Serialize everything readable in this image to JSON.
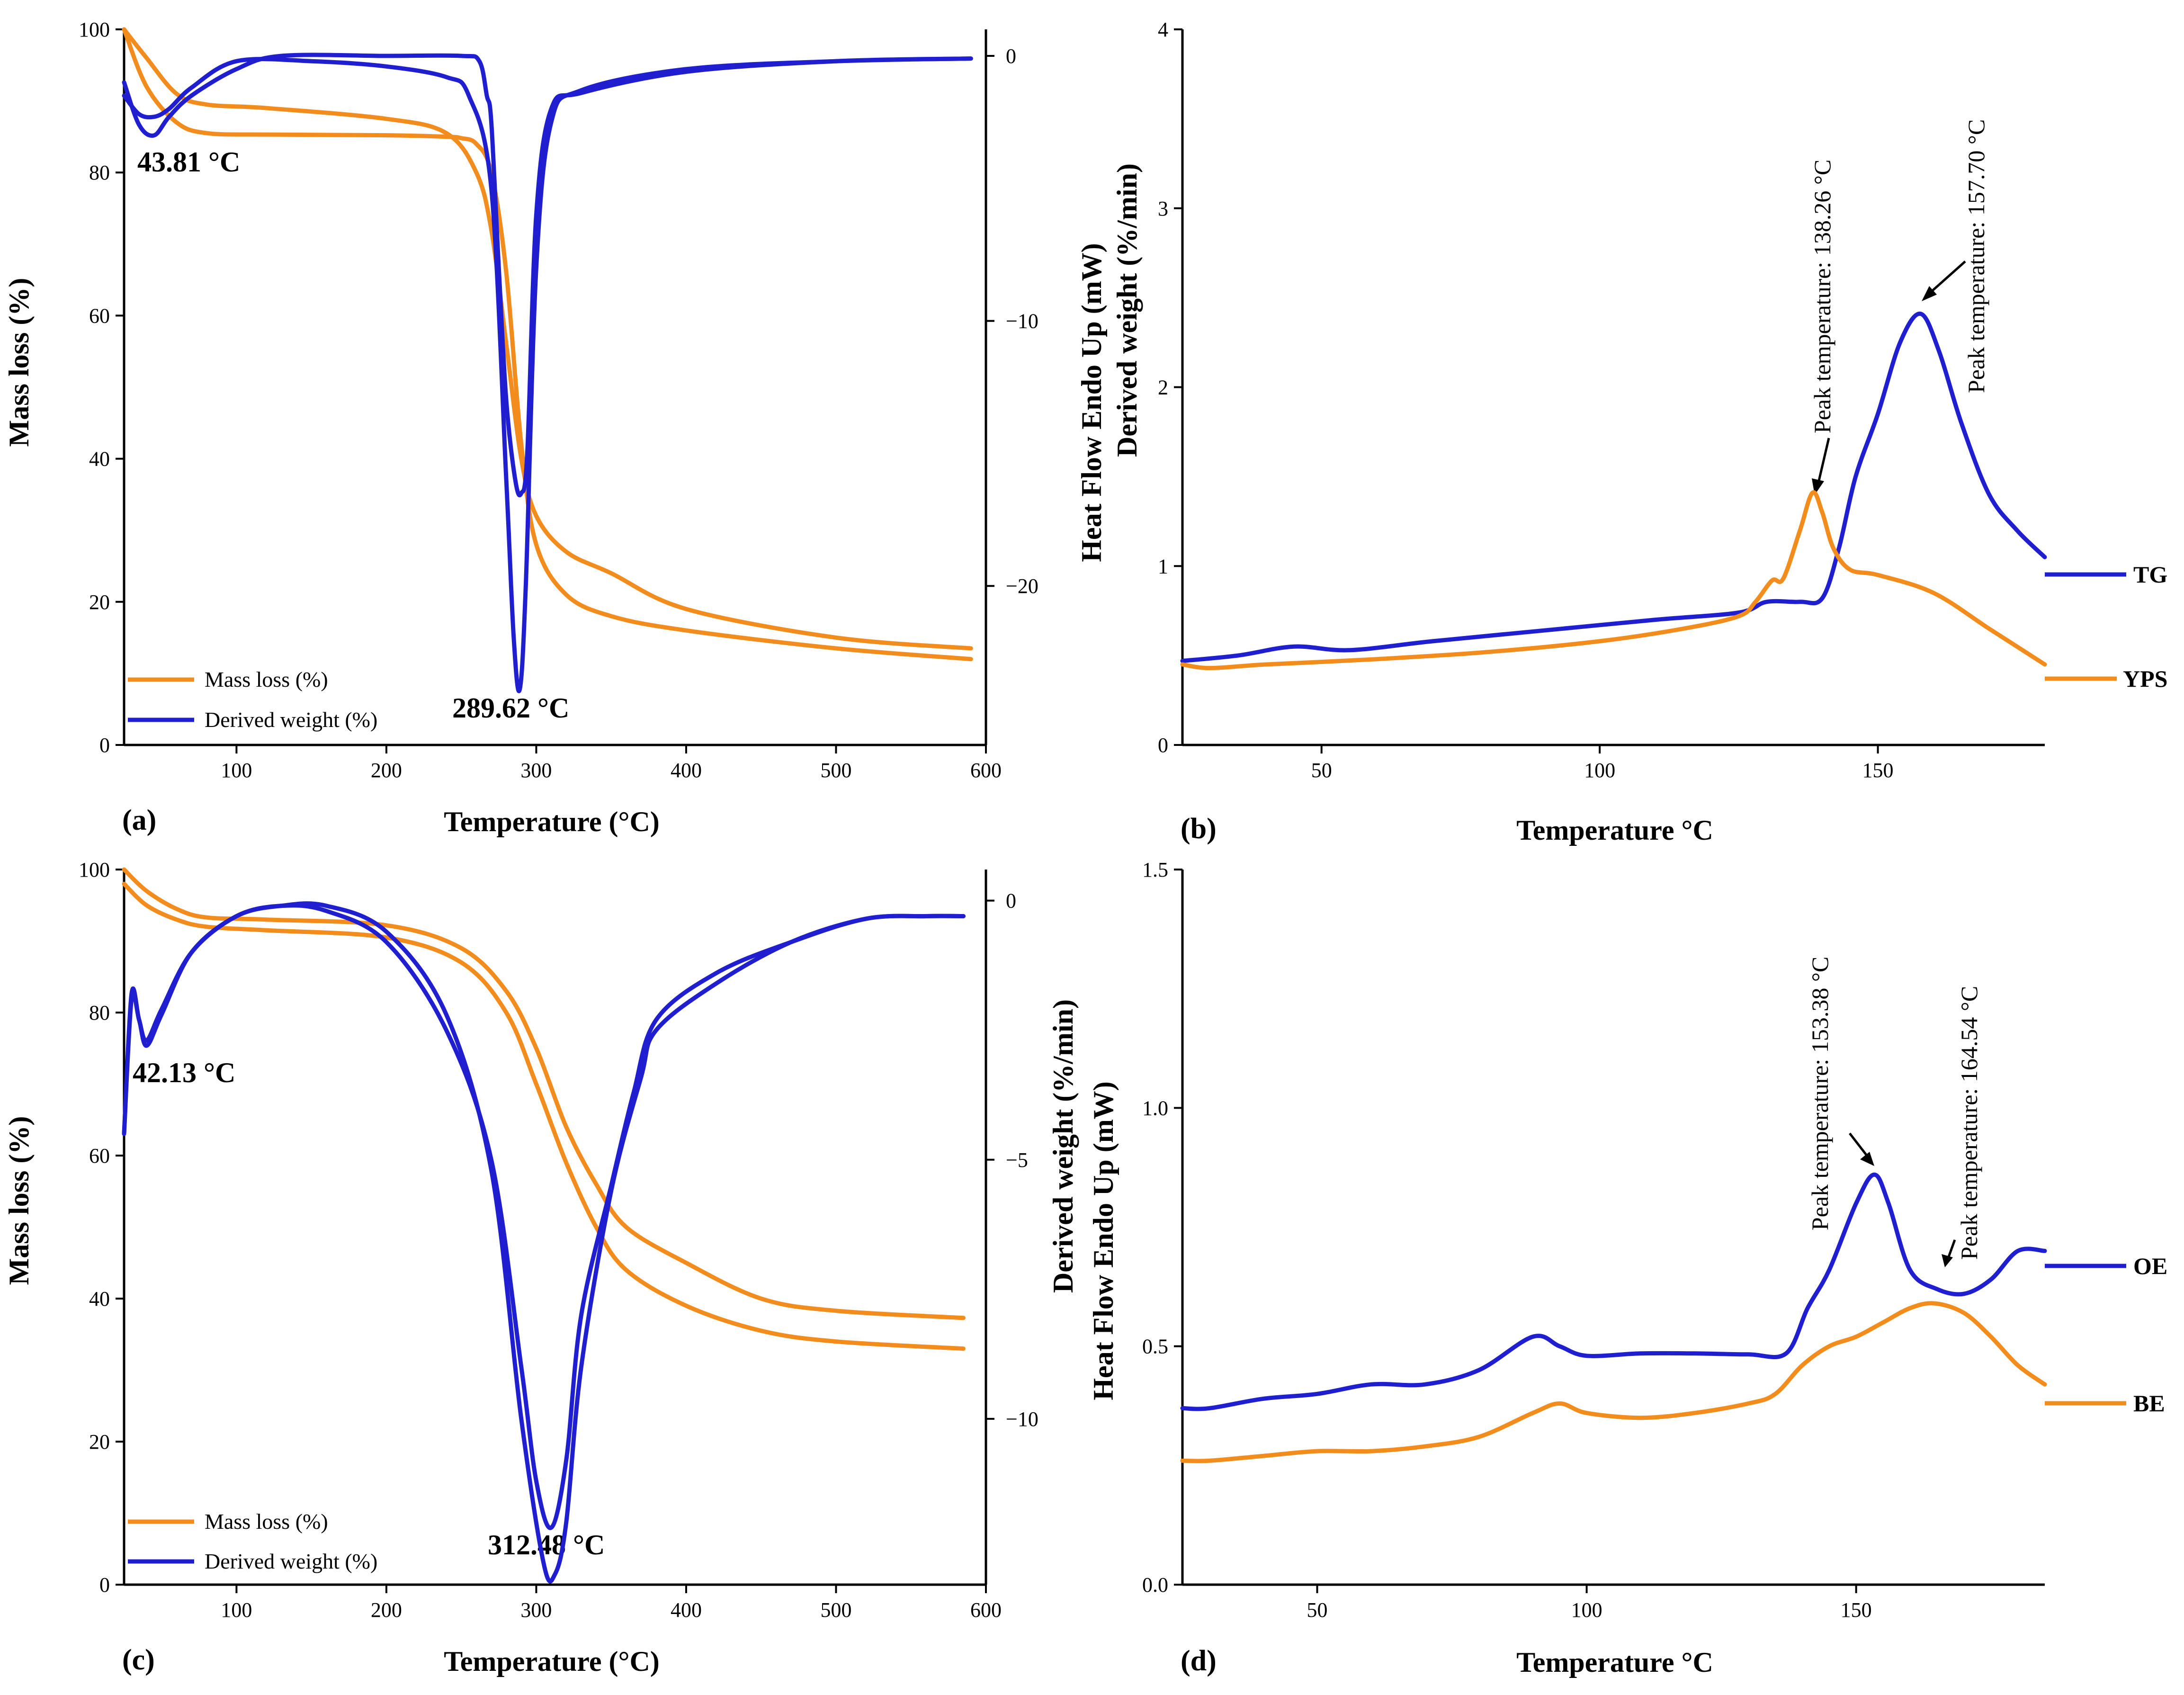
{
  "colors": {
    "mass": "#F28C1C",
    "deriv": "#1F1FD0",
    "axis": "#000000"
  },
  "chart_data": [
    {
      "panel": "(a)",
      "type": "line",
      "xlabel": "Temperature (°C)",
      "ylabel": "Mass loss (%)",
      "y2label": "Derived weight (%/min)",
      "xlim": [
        25,
        600
      ],
      "ylim": [
        0,
        100
      ],
      "y2lim": [
        -26,
        1
      ],
      "xticks": [
        100,
        200,
        300,
        400,
        500,
        600
      ],
      "yticks": [
        0,
        20,
        40,
        60,
        80,
        100
      ],
      "y2ticks": [
        -20,
        -10,
        0
      ],
      "legend": [
        "Mass loss (%)",
        "Derived weight (%)"
      ],
      "annotations": [
        "43.81 °C",
        "289.62 °C"
      ],
      "series": [
        {
          "name": "Mass loss (%)",
          "axis": "left",
          "x": [
            25,
            40,
            60,
            80,
            120,
            200,
            240,
            260,
            270,
            280,
            290,
            300,
            320,
            350,
            400,
            500,
            590
          ],
          "y": [
            100,
            96,
            91,
            89.5,
            89,
            87.5,
            85.5,
            80,
            72,
            56,
            40,
            32,
            27,
            24,
            19,
            15,
            13.5
          ]
        },
        {
          "name": "Mass loss (%)",
          "axis": "left",
          "x": [
            25,
            40,
            60,
            80,
            120,
            200,
            240,
            250,
            260,
            270,
            280,
            290,
            300,
            320,
            350,
            400,
            500,
            590
          ],
          "y": [
            100,
            92,
            87,
            85.5,
            85.3,
            85.2,
            85,
            84.8,
            84,
            80,
            66,
            42,
            28,
            21,
            18,
            16,
            13.5,
            12
          ]
        },
        {
          "name": "Derived weight (%)",
          "axis": "right",
          "x": [
            25,
            35,
            45,
            55,
            70,
            100,
            130,
            200,
            250,
            262,
            267,
            270,
            275,
            280,
            286,
            290,
            294,
            300,
            310,
            330,
            400,
            500,
            590
          ],
          "y": [
            -1,
            -2.6,
            -3,
            -2.3,
            -1.5,
            -0.5,
            0,
            0,
            0,
            -0.2,
            -1.5,
            -2.5,
            -8,
            -13,
            -16,
            -16.5,
            -15,
            -6,
            -2,
            -1.4,
            -0.6,
            -0.2,
            -0.1
          ]
        },
        {
          "name": "Derived weight (%)",
          "axis": "right",
          "x": [
            25,
            35,
            45,
            55,
            70,
            100,
            150,
            200,
            240,
            255,
            270,
            280,
            285,
            289,
            293,
            300,
            310,
            330,
            400,
            500,
            590
          ],
          "y": [
            -1.5,
            -2.2,
            -2.3,
            -2,
            -1.2,
            -0.2,
            -0.2,
            -0.4,
            -0.8,
            -1.5,
            -5,
            -16,
            -22,
            -23.9,
            -20,
            -8,
            -2.5,
            -1.3,
            -0.5,
            -0.2,
            -0.1
          ]
        }
      ]
    },
    {
      "panel": "(b)",
      "type": "line",
      "xlabel": "Temperature °C",
      "ylabel": "Heat Flow Endo Up (mW)",
      "xlim": [
        25,
        180
      ],
      "ylim": [
        0,
        4
      ],
      "xticks": [
        50,
        100,
        150
      ],
      "yticks": [
        0,
        1,
        2,
        3,
        4
      ],
      "annotations": [
        "Peak temperature: 138.26 °C",
        "Peak temperature: 157.70 °C"
      ],
      "end_labels": [
        "TG",
        "YPS"
      ],
      "series": [
        {
          "name": "TG",
          "x": [
            25,
            35,
            45,
            55,
            70,
            90,
            110,
            125,
            130,
            136,
            140,
            143,
            146,
            150,
            154,
            157.7,
            161,
            165,
            170,
            175,
            180
          ],
          "y": [
            0.47,
            0.5,
            0.55,
            0.53,
            0.58,
            0.64,
            0.7,
            0.74,
            0.8,
            0.8,
            0.82,
            1.1,
            1.5,
            1.85,
            2.25,
            2.41,
            2.2,
            1.8,
            1.4,
            1.2,
            1.05
          ]
        },
        {
          "name": "YPS",
          "x": [
            25,
            30,
            40,
            60,
            80,
            100,
            115,
            125,
            128,
            131,
            133,
            136,
            138.26,
            140,
            142,
            145,
            150,
            160,
            170,
            180
          ],
          "y": [
            0.45,
            0.43,
            0.45,
            0.48,
            0.52,
            0.58,
            0.65,
            0.72,
            0.8,
            0.92,
            0.93,
            1.2,
            1.41,
            1.3,
            1.1,
            0.98,
            0.95,
            0.85,
            0.65,
            0.45
          ]
        }
      ]
    },
    {
      "panel": "(c)",
      "type": "line",
      "xlabel": "Temperature (°C)",
      "ylabel": "Mass loss (%)",
      "y2label": "Derived weight (%/min)",
      "xlim": [
        25,
        600
      ],
      "ylim": [
        0,
        100
      ],
      "y2lim": [
        -13.2,
        0.6
      ],
      "xticks": [
        100,
        200,
        300,
        400,
        500,
        600
      ],
      "yticks": [
        0,
        20,
        40,
        60,
        80,
        100
      ],
      "y2ticks": [
        -10,
        -5,
        0
      ],
      "legend": [
        "Mass loss (%)",
        "Derived weight (%)"
      ],
      "annotations": [
        "42.13 °C",
        "312.48 °C"
      ],
      "series": [
        {
          "name": "Mass loss (%)",
          "axis": "left",
          "x": [
            25,
            40,
            60,
            80,
            120,
            200,
            250,
            280,
            300,
            320,
            340,
            360,
            400,
            450,
            500,
            585
          ],
          "y": [
            100,
            97,
            94.5,
            93.3,
            93,
            92.2,
            89,
            83,
            75,
            64,
            56,
            50,
            45,
            40,
            38.3,
            37.3
          ]
        },
        {
          "name": "Mass loss (%)",
          "axis": "left",
          "x": [
            25,
            40,
            60,
            80,
            120,
            200,
            250,
            280,
            300,
            320,
            340,
            360,
            400,
            450,
            500,
            585
          ],
          "y": [
            98,
            95,
            93,
            92,
            91.5,
            90.5,
            87,
            80,
            70,
            59,
            50,
            44,
            39,
            35.5,
            34,
            33
          ]
        },
        {
          "name": "Derived weight (%)",
          "axis": "right",
          "x": [
            25,
            30,
            35,
            40,
            50,
            70,
            100,
            130,
            160,
            200,
            240,
            270,
            290,
            300,
            310,
            320,
            330,
            350,
            365,
            380,
            420,
            470,
            520,
            560,
            585
          ],
          "y": [
            -4.5,
            -1.8,
            -2.3,
            -2.7,
            -2.1,
            -1,
            -0.3,
            -0.1,
            -0.2,
            -0.8,
            -2.5,
            -5,
            -9,
            -11.2,
            -12.1,
            -10.8,
            -8,
            -5.5,
            -3.7,
            -2.3,
            -1.4,
            -0.8,
            -0.35,
            -0.3,
            -0.3
          ]
        },
        {
          "name": "Derived weight (%)",
          "axis": "right",
          "x": [
            25,
            30,
            35,
            40,
            50,
            70,
            100,
            130,
            160,
            200,
            240,
            270,
            290,
            305,
            312.48,
            320,
            330,
            350,
            370,
            380,
            420,
            470,
            520,
            560,
            585
          ],
          "y": [
            -4.5,
            -1.9,
            -2.3,
            -2.8,
            -2.2,
            -1,
            -0.3,
            -0.1,
            -0.1,
            -0.6,
            -2.2,
            -5.2,
            -10,
            -12.8,
            -13,
            -12,
            -9,
            -5.6,
            -3.4,
            -2.5,
            -1.6,
            -0.8,
            -0.35,
            -0.3,
            -0.3
          ]
        }
      ]
    },
    {
      "panel": "(d)",
      "type": "line",
      "xlabel": "Temperature °C",
      "ylabel": "Heat Flow Endo Up (mW)",
      "xlim": [
        25,
        185
      ],
      "ylim": [
        0,
        1.5
      ],
      "xticks": [
        50,
        100,
        150
      ],
      "yticks": [
        0.0,
        0.5,
        1.0,
        1.5
      ],
      "ytick_labels": [
        "0.0",
        "0.5",
        "1.0",
        "1.5"
      ],
      "annotations": [
        "Peak temperature: 153.38 °C",
        "Peak temperature: 164.54 °C"
      ],
      "end_labels": [
        "OE",
        "BE"
      ],
      "series": [
        {
          "name": "OE",
          "x": [
            25,
            30,
            40,
            50,
            60,
            70,
            80,
            90,
            95,
            100,
            110,
            120,
            130,
            137,
            141,
            145,
            150,
            153.38,
            156,
            160,
            165,
            170,
            175,
            180,
            185
          ],
          "y": [
            0.37,
            0.37,
            0.39,
            0.4,
            0.42,
            0.42,
            0.45,
            0.52,
            0.5,
            0.48,
            0.485,
            0.485,
            0.483,
            0.485,
            0.58,
            0.66,
            0.8,
            0.86,
            0.8,
            0.66,
            0.62,
            0.61,
            0.64,
            0.7,
            0.7
          ]
        },
        {
          "name": "BE",
          "x": [
            25,
            30,
            40,
            50,
            60,
            70,
            80,
            90,
            95,
            100,
            110,
            120,
            130,
            135,
            140,
            145,
            150,
            155,
            160,
            164.54,
            170,
            175,
            180,
            185
          ],
          "y": [
            0.26,
            0.26,
            0.27,
            0.28,
            0.28,
            0.29,
            0.31,
            0.36,
            0.38,
            0.36,
            0.35,
            0.36,
            0.38,
            0.4,
            0.46,
            0.5,
            0.52,
            0.55,
            0.58,
            0.59,
            0.57,
            0.52,
            0.46,
            0.42
          ]
        }
      ]
    }
  ]
}
